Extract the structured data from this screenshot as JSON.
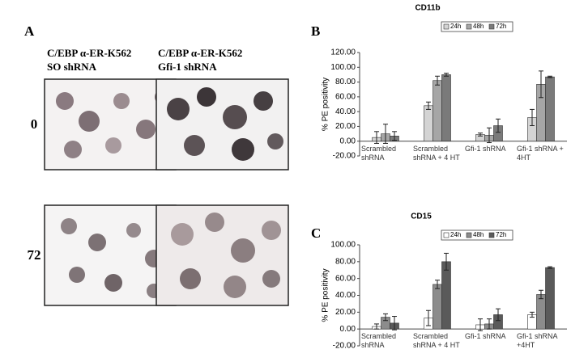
{
  "panel_a": {
    "label": "A",
    "columns": [
      [
        "C/EBP α-ER-K562",
        "SO shRNA"
      ],
      [
        "C/EBP α-ER-K562",
        "Gfi-1 shRNA"
      ]
    ],
    "rows": [
      "0",
      "72"
    ]
  },
  "panel_labels": [
    "B",
    "C"
  ],
  "chart_data": [
    {
      "type": "bar",
      "title": "CD11b",
      "ylabel": "% PE positivity",
      "categories": [
        "Scrambled shRNA",
        "Scrambled shRNA + 4 HT",
        "Gfi-1 shRNA",
        "Gfi-1 shRNA + 4HT"
      ],
      "series": [
        {
          "name": "24h",
          "color": "#d4d4d4",
          "values": [
            5,
            48,
            9,
            32
          ],
          "errors": [
            8,
            5,
            2,
            11
          ]
        },
        {
          "name": "48h",
          "color": "#a6a6a6",
          "values": [
            10,
            82,
            8,
            77
          ],
          "errors": [
            13,
            6,
            10,
            18
          ]
        },
        {
          "name": "72h",
          "color": "#7a7a7a",
          "values": [
            7,
            90,
            21,
            87
          ],
          "errors": [
            6,
            2,
            9,
            1
          ]
        }
      ],
      "ylim": [
        -20,
        120
      ],
      "yticks": [
        {
          "value": -20,
          "label": "-20.00"
        },
        {
          "value": 0,
          "label": "0.00"
        },
        {
          "value": 20,
          "label": "20.00"
        },
        {
          "value": 40,
          "label": "40.00"
        },
        {
          "value": 60,
          "label": "60.00"
        },
        {
          "value": 80,
          "label": "80.00"
        },
        {
          "value": 100,
          "label": "100.00"
        },
        {
          "value": 120,
          "label": "120.00"
        }
      ],
      "legend": "top"
    },
    {
      "type": "bar",
      "title": "CD15",
      "ylabel": "% PE positivity",
      "categories": [
        "Scrambled shRNA",
        "Scrambled shRNA + 4 HT",
        "Gfi-1 shRNA",
        "Gfi-1 shRNA +4HT"
      ],
      "series": [
        {
          "name": "24h",
          "color": "#ffffff",
          "values": [
            3,
            13,
            5,
            17
          ],
          "errors": [
            3,
            9,
            7,
            3
          ]
        },
        {
          "name": "48h",
          "color": "#8c8c8c",
          "values": [
            14,
            53,
            6,
            41
          ],
          "errors": [
            4,
            5,
            6,
            5
          ]
        },
        {
          "name": "72h",
          "color": "#5a5a5a",
          "values": [
            7,
            80,
            17,
            73
          ],
          "errors": [
            8,
            10,
            7,
            1
          ]
        }
      ],
      "ylim": [
        -20,
        100
      ],
      "yticks": [
        {
          "value": -20,
          "label": "-20.00"
        },
        {
          "value": 0,
          "label": "0.00"
        },
        {
          "value": 20,
          "label": "20.00"
        },
        {
          "value": 40,
          "label": "40.00"
        },
        {
          "value": 60,
          "label": "60.00"
        },
        {
          "value": 80,
          "label": "80.00"
        },
        {
          "value": 100,
          "label": "100.00"
        }
      ],
      "legend": "top"
    }
  ]
}
